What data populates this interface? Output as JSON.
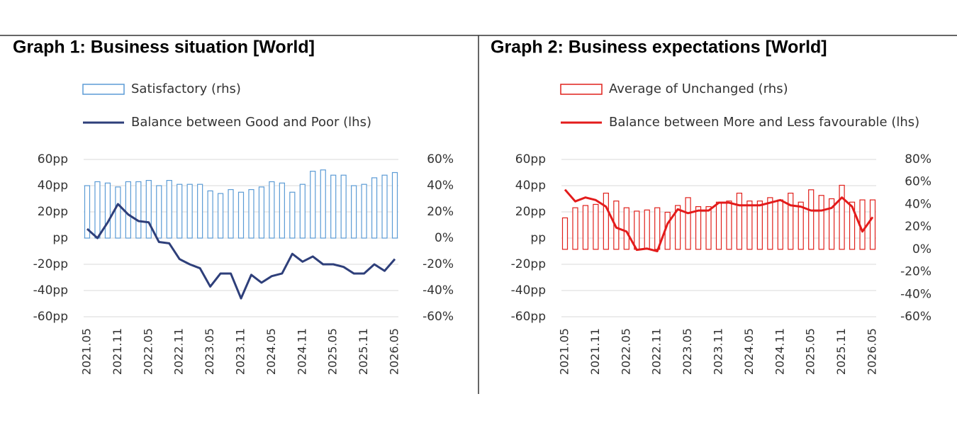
{
  "chart_data": [
    {
      "type": "combo",
      "title": "Graph 1: Business situation [World]",
      "categories": [
        "2021.05",
        null,
        null,
        "2021.11",
        null,
        null,
        "2022.05",
        null,
        null,
        "2022.11",
        null,
        null,
        "2023.05",
        null,
        null,
        "2023.11",
        null,
        null,
        "2024.05",
        null,
        null,
        "2024.11",
        null,
        null,
        "2025.05",
        null,
        null,
        "2025.11",
        null,
        null,
        "2026.05"
      ],
      "series": [
        {
          "name": "Satisfactory (rhs)",
          "type": "bar",
          "axis": "y2",
          "color": "#5b9bd5",
          "values": [
            40,
            43,
            42,
            39,
            43,
            43,
            44,
            40,
            44,
            41,
            41,
            41,
            36,
            34,
            37,
            35,
            37,
            39,
            43,
            42,
            35,
            41,
            51,
            52,
            48,
            48,
            40,
            41,
            46,
            48,
            50
          ]
        },
        {
          "name": "Balance between Good and Poor (lhs)",
          "type": "line",
          "color": "#2e3f7a",
          "values": [
            7,
            0,
            12,
            26,
            18,
            13,
            12,
            -3,
            -4,
            -16,
            -20,
            -23,
            -37,
            -27,
            -27,
            -46,
            -28,
            -34,
            -29,
            -27,
            -12,
            -18,
            -14,
            -20,
            -20,
            -22,
            -27,
            -27,
            -20,
            -25,
            -16
          ]
        }
      ],
      "ylim": [
        -60,
        60
      ],
      "yticks": [
        {
          "value": 60,
          "label": "60pp"
        },
        {
          "value": 40,
          "label": "40pp"
        },
        {
          "value": 20,
          "label": "20pp"
        },
        {
          "value": 0,
          "label": "pp"
        },
        {
          "value": -20,
          "label": "-20pp"
        },
        {
          "value": -40,
          "label": "-40pp"
        },
        {
          "value": -60,
          "label": "-60pp"
        }
      ],
      "y2lim": [
        -60,
        60
      ],
      "y2ticks": [
        {
          "value": 60,
          "label": "60%"
        },
        {
          "value": 40,
          "label": "40%"
        },
        {
          "value": 20,
          "label": "20%"
        },
        {
          "value": 0,
          "label": "0%"
        },
        {
          "value": -20,
          "label": "-20%"
        },
        {
          "value": -40,
          "label": "-40%"
        },
        {
          "value": -60,
          "label": "-60%"
        }
      ],
      "grid": true
    },
    {
      "type": "combo",
      "title": "Graph 2: Business expectations [World]",
      "categories": [
        "2021.05",
        null,
        null,
        "2021.11",
        null,
        null,
        "2022.05",
        null,
        null,
        "2022.11",
        null,
        null,
        "2023.05",
        null,
        null,
        "2023.11",
        null,
        null,
        "2024.05",
        null,
        null,
        "2024.11",
        null,
        null,
        "2025.05",
        null,
        null,
        "2025.11",
        null,
        null,
        "2026.05"
      ],
      "series": [
        {
          "name": "Average of Unchanged (rhs)",
          "type": "bar",
          "axis": "y2",
          "color": "#e0201b",
          "values": [
            28,
            37,
            39,
            40,
            50,
            43,
            37,
            34,
            35,
            37,
            33,
            39,
            46,
            38,
            38,
            42,
            43,
            50,
            43,
            43,
            46,
            44,
            50,
            42,
            53,
            48,
            45,
            57,
            42,
            44,
            44
          ]
        },
        {
          "name": "Balance between More and Less favourable (lhs)",
          "type": "line",
          "color": "#e31b1b",
          "values": [
            37,
            28,
            31,
            29,
            24,
            8,
            5,
            -9,
            -8,
            -10,
            11,
            22,
            19,
            21,
            21,
            27,
            27,
            25,
            25,
            25,
            27,
            29,
            25,
            24,
            21,
            21,
            23,
            31,
            24,
            5,
            16
          ]
        }
      ],
      "ylim": [
        -60,
        60
      ],
      "yticks": [
        {
          "value": 60,
          "label": "60pp"
        },
        {
          "value": 40,
          "label": "40pp"
        },
        {
          "value": 20,
          "label": "20pp"
        },
        {
          "value": 0,
          "label": "pp"
        },
        {
          "value": -20,
          "label": "-20pp"
        },
        {
          "value": -40,
          "label": "-40pp"
        },
        {
          "value": -60,
          "label": "-60pp"
        }
      ],
      "y2lim": [
        -60,
        80
      ],
      "y2ticks": [
        {
          "value": 80,
          "label": "80%"
        },
        {
          "value": 60,
          "label": "60%"
        },
        {
          "value": 40,
          "label": "40%"
        },
        {
          "value": 20,
          "label": "20%"
        },
        {
          "value": 0,
          "label": "0%"
        },
        {
          "value": -20,
          "label": "-20%"
        },
        {
          "value": -40,
          "label": "-40%"
        },
        {
          "value": -60,
          "label": "-60%"
        }
      ],
      "grid": true
    }
  ]
}
